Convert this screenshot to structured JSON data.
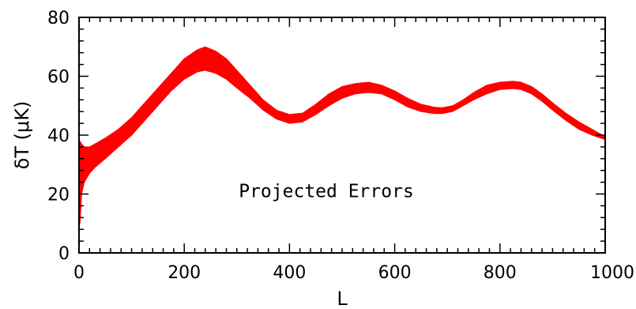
{
  "chart_data": {
    "type": "area",
    "title": "",
    "xlabel": "L",
    "ylabel": "δT (μK)",
    "xlim": [
      0,
      1000
    ],
    "ylim": [
      0,
      80
    ],
    "x_ticks": [
      0,
      200,
      400,
      600,
      800,
      1000
    ],
    "y_ticks": [
      0,
      20,
      40,
      60,
      80
    ],
    "grid": false,
    "legend": "none",
    "annotation": "Projected Errors",
    "band_color": "#ff0000",
    "series": [
      {
        "x": [
          2,
          5,
          10,
          20,
          30,
          50,
          75,
          100,
          125,
          150,
          175,
          200,
          225,
          240,
          260,
          280,
          300,
          325,
          350,
          375,
          400,
          425,
          450,
          475,
          500,
          525,
          550,
          575,
          600,
          625,
          650,
          675,
          690,
          710,
          730,
          750,
          775,
          800,
          825,
          840,
          860,
          880,
          900,
          925,
          950,
          975,
          1000
        ],
        "lower": [
          10,
          20,
          24,
          27,
          29,
          32,
          36,
          40,
          45,
          50,
          55,
          59,
          61.5,
          62,
          61,
          59,
          56,
          52.5,
          48.5,
          45.5,
          44,
          44.5,
          47,
          50,
          52.5,
          54,
          54.5,
          54,
          52,
          49.5,
          48,
          47.3,
          47.3,
          48,
          50,
          52,
          54,
          55.5,
          55.8,
          55.5,
          54,
          51.5,
          48.5,
          45,
          42,
          40,
          38.5
        ],
        "upper": [
          38,
          37,
          36,
          36,
          37,
          39,
          42,
          46,
          51,
          56,
          61,
          66,
          69,
          70,
          68.5,
          66,
          62,
          57,
          52,
          48.5,
          47,
          47.5,
          50.5,
          54,
          56.5,
          57.5,
          58,
          57,
          55,
          52.5,
          50.5,
          49.5,
          49.3,
          50,
          52,
          54.5,
          57,
          58,
          58.3,
          58,
          56.5,
          54,
          51,
          47.5,
          44.5,
          42,
          39.5
        ]
      }
    ]
  }
}
